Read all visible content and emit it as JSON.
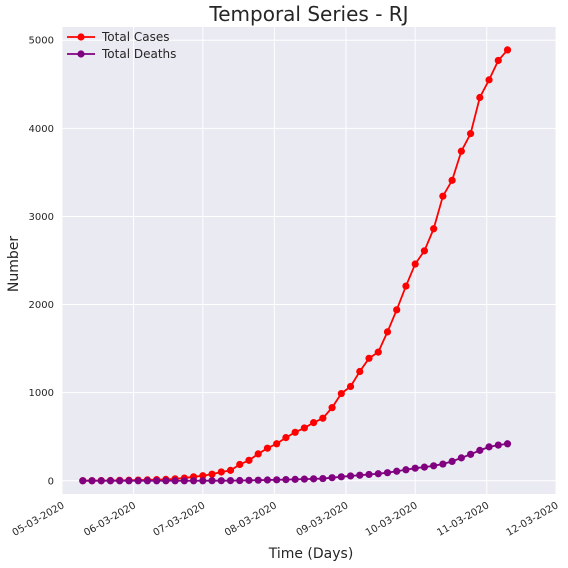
{
  "chart_data": {
    "type": "line",
    "title": "Temporal Series - RJ",
    "xlabel": "Time (Days)",
    "ylabel": "Number",
    "x_unit": "date",
    "x_tick_labels": [
      "05-03-2020",
      "06-03-2020",
      "07-03-2020",
      "08-03-2020",
      "09-03-2020",
      "10-03-2020",
      "11-03-2020",
      "12-03-2020"
    ],
    "xlim": [
      "2020-05-03T00:00",
      "2020-12-03T00:00"
    ],
    "ylim": [
      -150,
      5150
    ],
    "y_ticks": [
      0,
      1000,
      2000,
      3000,
      4000,
      5000
    ],
    "grid": true,
    "legend_position": "top-left",
    "x": [
      "2020-05-12",
      "2020-05-16",
      "2020-05-20",
      "2020-05-24",
      "2020-05-28",
      "2020-06-01",
      "2020-06-05",
      "2020-06-09",
      "2020-06-13",
      "2020-06-17",
      "2020-06-21",
      "2020-06-25",
      "2020-06-29",
      "2020-07-03",
      "2020-07-07",
      "2020-07-11",
      "2020-07-15",
      "2020-07-19",
      "2020-07-23",
      "2020-07-27",
      "2020-07-31",
      "2020-08-04",
      "2020-08-08",
      "2020-08-12",
      "2020-08-16",
      "2020-08-20",
      "2020-08-24",
      "2020-08-28",
      "2020-09-01",
      "2020-09-05",
      "2020-09-09",
      "2020-09-13",
      "2020-09-17",
      "2020-09-21",
      "2020-09-25",
      "2020-09-29",
      "2020-10-03",
      "2020-10-07",
      "2020-10-11",
      "2020-10-15",
      "2020-10-19",
      "2020-10-23",
      "2020-10-27",
      "2020-10-31",
      "2020-11-04",
      "2020-11-08",
      "2020-11-12",
      "2020-11-16",
      "2020-11-20",
      "2020-11-24",
      "2020-11-28"
    ],
    "series": [
      {
        "name": "Total Cases",
        "color": "#ff0000",
        "values": [
          1,
          1,
          2,
          3,
          5,
          6,
          8,
          10,
          13,
          16,
          22,
          31,
          45,
          57,
          75,
          100,
          118,
          185,
          232,
          305,
          370,
          420,
          490,
          550,
          600,
          660,
          710,
          830,
          990,
          1070,
          1240,
          1390,
          1460,
          1690,
          1940,
          2210,
          2460,
          2610,
          2860,
          3230,
          3410,
          3740,
          3940,
          4350,
          4550,
          4770,
          4890,
          null,
          null,
          null,
          null
        ]
      },
      {
        "name": "Total Deaths",
        "color": "#800080",
        "values": [
          0,
          0,
          0,
          0,
          0,
          0,
          0,
          0,
          0,
          0,
          0,
          0,
          0,
          0,
          1,
          1,
          2,
          3,
          5,
          7,
          9,
          11,
          13,
          16,
          19,
          22,
          25,
          35,
          45,
          55,
          63,
          72,
          80,
          92,
          108,
          125,
          143,
          155,
          170,
          190,
          220,
          260,
          300,
          345,
          385,
          405,
          420,
          null,
          null,
          null,
          null
        ]
      }
    ]
  }
}
